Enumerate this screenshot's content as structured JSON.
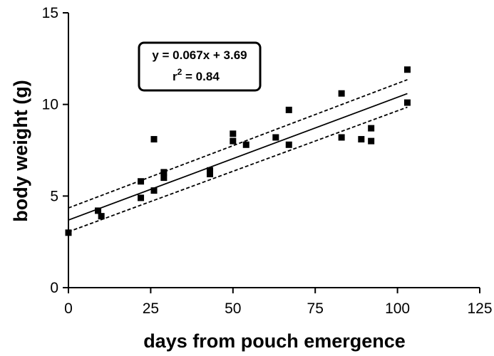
{
  "chart_data": {
    "type": "scatter",
    "xlabel": "days from pouch emergence",
    "ylabel": "body weight (g)",
    "xlim": [
      0,
      125
    ],
    "ylim": [
      0,
      15
    ],
    "xticks": [
      0,
      25,
      50,
      75,
      100,
      125
    ],
    "yticks": [
      0,
      5,
      10,
      15
    ],
    "grid": false,
    "points": [
      {
        "x": 0,
        "y": 3.0
      },
      {
        "x": 9,
        "y": 4.2
      },
      {
        "x": 10,
        "y": 3.9
      },
      {
        "x": 22,
        "y": 5.8
      },
      {
        "x": 22,
        "y": 4.9
      },
      {
        "x": 26,
        "y": 8.1
      },
      {
        "x": 26,
        "y": 5.3
      },
      {
        "x": 29,
        "y": 6.3
      },
      {
        "x": 29,
        "y": 6.0
      },
      {
        "x": 43,
        "y": 6.4
      },
      {
        "x": 43,
        "y": 6.2
      },
      {
        "x": 50,
        "y": 8.4
      },
      {
        "x": 50,
        "y": 8.0
      },
      {
        "x": 54,
        "y": 7.8
      },
      {
        "x": 63,
        "y": 8.2
      },
      {
        "x": 67,
        "y": 9.7
      },
      {
        "x": 67,
        "y": 7.8
      },
      {
        "x": 83,
        "y": 10.6
      },
      {
        "x": 83,
        "y": 8.2
      },
      {
        "x": 89,
        "y": 8.1
      },
      {
        "x": 92,
        "y": 8.7
      },
      {
        "x": 92,
        "y": 8.0
      },
      {
        "x": 103,
        "y": 11.9
      },
      {
        "x": 103,
        "y": 10.1
      }
    ],
    "regression": {
      "slope": 0.067,
      "intercept": 3.69,
      "x_range": [
        0,
        103
      ],
      "ci_upper": [
        {
          "x": 0,
          "y": 4.35
        },
        {
          "x": 103,
          "y": 11.35
        }
      ],
      "ci_lower": [
        {
          "x": 0,
          "y": 3.05
        },
        {
          "x": 103,
          "y": 9.85
        }
      ]
    },
    "annotation": {
      "equation": "y = 0.067x + 3.69",
      "r2_prefix": "r",
      "r2_sup": "2",
      "r2_value": " = 0.84"
    }
  }
}
